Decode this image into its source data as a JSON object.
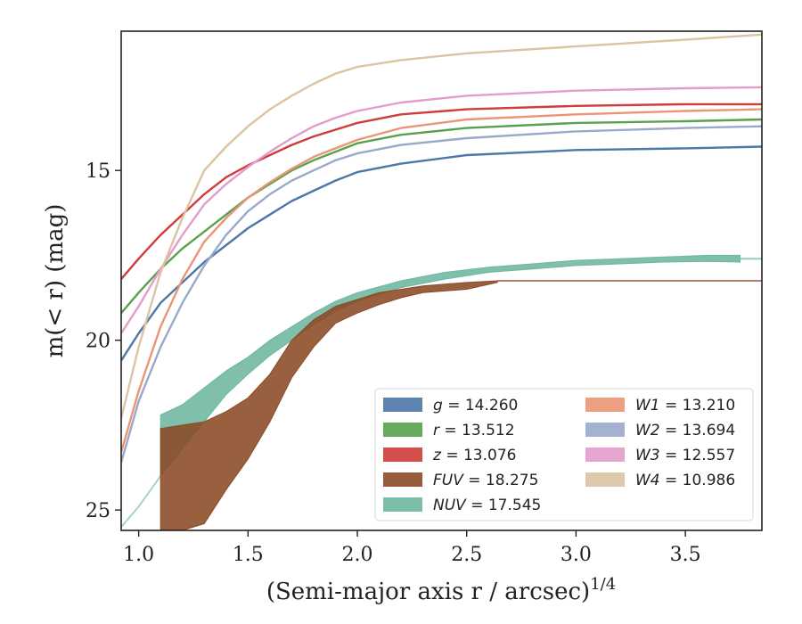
{
  "chart_data": {
    "type": "line",
    "xlabel": "(Semi-major axis r / arcsec)",
    "xlabel_sup": "1/4",
    "ylabel": "m(< r) (mag)",
    "xlim": [
      0.92,
      3.85
    ],
    "ylim": [
      25.6,
      10.9
    ],
    "y_inverted": true,
    "x_ticks": [
      1.0,
      1.5,
      2.0,
      2.5,
      3.0,
      3.5
    ],
    "x_tick_labels": [
      "1.0",
      "1.5",
      "2.0",
      "2.5",
      "3.0",
      "3.5"
    ],
    "y_ticks": [
      15,
      20,
      25
    ],
    "y_tick_labels": [
      "15",
      "20",
      "25"
    ],
    "grid": false,
    "legend": {
      "placement": "lower-right",
      "columns": 2,
      "entries": [
        {
          "symbol": "g",
          "value": "14.260",
          "color": "#4c78a8"
        },
        {
          "symbol": "r",
          "value": "13.512",
          "color": "#59a14f"
        },
        {
          "symbol": "z",
          "value": "13.076",
          "color": "#d03b3b"
        },
        {
          "symbol": "FUV",
          "value": "18.275",
          "color": "#8b4a26"
        },
        {
          "symbol": "NUV",
          "value": "17.545",
          "color": "#6db6a0"
        },
        {
          "symbol": "W1",
          "value": "13.210",
          "color": "#eb9574"
        },
        {
          "symbol": "W2",
          "value": "13.694",
          "color": "#9aa8cc"
        },
        {
          "symbol": "W3",
          "value": "12.557",
          "color": "#e39ccb"
        },
        {
          "symbol": "W4",
          "value": "10.986",
          "color": "#dcc3a2"
        }
      ]
    },
    "series": [
      {
        "name": "g = 14.260",
        "color": "#4c78a8",
        "x": [
          0.92,
          1.0,
          1.1,
          1.2,
          1.3,
          1.4,
          1.5,
          1.6,
          1.7,
          1.8,
          1.9,
          2.0,
          2.2,
          2.5,
          3.0,
          3.5,
          3.85
        ],
        "y": [
          20.6,
          19.8,
          18.9,
          18.3,
          17.7,
          17.2,
          16.7,
          16.3,
          15.9,
          15.6,
          15.3,
          15.05,
          14.8,
          14.55,
          14.4,
          14.35,
          14.3
        ]
      },
      {
        "name": "r = 13.512",
        "color": "#59a14f",
        "x": [
          0.92,
          1.0,
          1.1,
          1.2,
          1.3,
          1.4,
          1.5,
          1.6,
          1.7,
          1.8,
          1.9,
          2.0,
          2.2,
          2.5,
          3.0,
          3.5,
          3.85
        ],
        "y": [
          19.2,
          18.6,
          17.9,
          17.3,
          16.8,
          16.3,
          15.8,
          15.4,
          15.0,
          14.7,
          14.45,
          14.2,
          13.95,
          13.75,
          13.6,
          13.55,
          13.5
        ]
      },
      {
        "name": "z = 13.076",
        "color": "#d03b3b",
        "x": [
          0.92,
          1.0,
          1.1,
          1.2,
          1.3,
          1.4,
          1.5,
          1.6,
          1.7,
          1.8,
          1.9,
          2.0,
          2.2,
          2.5,
          3.0,
          3.5,
          3.85
        ],
        "y": [
          18.2,
          17.6,
          16.9,
          16.3,
          15.7,
          15.2,
          14.85,
          14.55,
          14.25,
          14.0,
          13.8,
          13.6,
          13.35,
          13.2,
          13.1,
          13.05,
          13.05
        ]
      },
      {
        "name": "W1 = 13.210",
        "color": "#eb9574",
        "x": [
          0.92,
          1.0,
          1.1,
          1.2,
          1.3,
          1.4,
          1.5,
          1.6,
          1.7,
          1.8,
          1.9,
          2.0,
          2.2,
          2.5,
          3.0,
          3.5,
          3.85
        ],
        "y": [
          23.3,
          21.5,
          19.6,
          18.2,
          17.1,
          16.4,
          15.8,
          15.35,
          14.95,
          14.6,
          14.35,
          14.1,
          13.75,
          13.5,
          13.35,
          13.25,
          13.2
        ]
      },
      {
        "name": "W2 = 13.694",
        "color": "#9aa8cc",
        "x": [
          0.92,
          1.0,
          1.1,
          1.2,
          1.3,
          1.4,
          1.5,
          1.6,
          1.7,
          1.8,
          1.9,
          2.0,
          2.2,
          2.5,
          3.0,
          3.5,
          3.85
        ],
        "y": [
          23.6,
          21.8,
          20.2,
          18.9,
          17.8,
          16.9,
          16.2,
          15.7,
          15.3,
          15.0,
          14.7,
          14.5,
          14.25,
          14.05,
          13.85,
          13.75,
          13.7
        ]
      },
      {
        "name": "W3 = 12.557",
        "color": "#e39ccb",
        "x": [
          0.92,
          1.0,
          1.1,
          1.2,
          1.3,
          1.4,
          1.5,
          1.6,
          1.7,
          1.8,
          1.9,
          2.0,
          2.2,
          2.5,
          3.0,
          3.5,
          3.85
        ],
        "y": [
          19.8,
          19.0,
          17.9,
          16.9,
          16.0,
          15.4,
          14.9,
          14.45,
          14.05,
          13.7,
          13.45,
          13.25,
          13.0,
          12.8,
          12.65,
          12.58,
          12.55
        ]
      },
      {
        "name": "W4 = 10.986",
        "color": "#dcc3a2",
        "x": [
          0.92,
          1.0,
          1.1,
          1.2,
          1.3,
          1.4,
          1.5,
          1.6,
          1.7,
          1.8,
          1.9,
          2.0,
          2.2,
          2.5,
          3.0,
          3.5,
          3.85
        ],
        "y": [
          22.3,
          20.2,
          18.0,
          16.4,
          15.0,
          14.3,
          13.7,
          13.2,
          12.8,
          12.45,
          12.15,
          11.95,
          11.75,
          11.55,
          11.35,
          11.15,
          11.0
        ]
      },
      {
        "name": "NUV = 17.545",
        "color": "#6db6a0",
        "band": true,
        "x": [
          1.1,
          1.2,
          1.3,
          1.4,
          1.5,
          1.6,
          1.7,
          1.8,
          1.9,
          2.0,
          2.2,
          2.4,
          2.6,
          2.8,
          3.0,
          3.2,
          3.4,
          3.6,
          3.75
        ],
        "y_low": [
          22.2,
          21.9,
          21.4,
          20.9,
          20.5,
          20.0,
          19.6,
          19.2,
          18.85,
          18.6,
          18.25,
          18.0,
          17.85,
          17.75,
          17.65,
          17.6,
          17.55,
          17.5,
          17.5
        ],
        "y_high": [
          24.0,
          23.2,
          22.4,
          21.6,
          21.0,
          20.45,
          20.0,
          19.55,
          19.15,
          18.85,
          18.45,
          18.2,
          18.0,
          17.9,
          17.8,
          17.75,
          17.7,
          17.68,
          17.7
        ],
        "tail_x": [
          3.75,
          3.85
        ],
        "tail_y": [
          17.6,
          17.6
        ],
        "lead_x": [
          0.92,
          1.0,
          1.1
        ],
        "lead_y": [
          25.5,
          24.9,
          24.0
        ]
      },
      {
        "name": "FUV = 18.275",
        "color": "#8b4a26",
        "band": true,
        "x": [
          1.1,
          1.2,
          1.3,
          1.4,
          1.5,
          1.6,
          1.7,
          1.8,
          1.9,
          2.0,
          2.1,
          2.2,
          2.3,
          2.4,
          2.5,
          2.64
        ],
        "y_low": [
          22.6,
          22.5,
          22.4,
          22.1,
          21.7,
          21.0,
          20.0,
          19.4,
          19.0,
          18.8,
          18.6,
          18.5,
          18.4,
          18.35,
          18.3,
          18.25
        ],
        "y_high": [
          25.6,
          25.6,
          25.4,
          24.4,
          23.5,
          22.4,
          21.1,
          20.2,
          19.5,
          19.2,
          18.95,
          18.75,
          18.6,
          18.55,
          18.5,
          18.3
        ],
        "tail_x": [
          2.64,
          3.85
        ],
        "tail_y": [
          18.25,
          18.25
        ]
      }
    ]
  }
}
